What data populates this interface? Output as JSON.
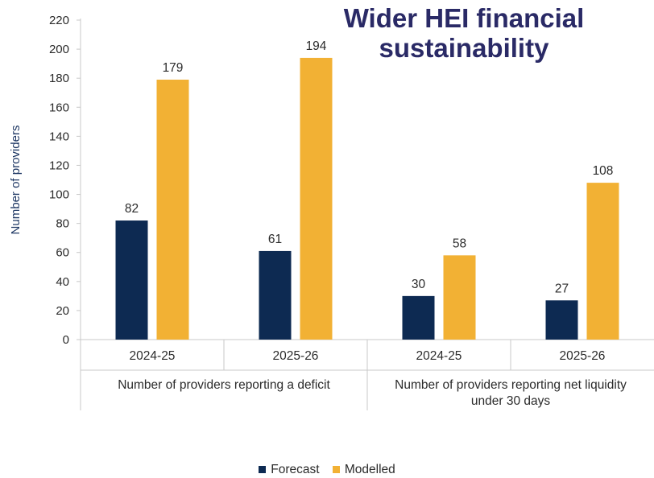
{
  "title": "Wider HEI financial sustainability",
  "colors": {
    "forecast": "#0d2a52",
    "modelled": "#f2b134",
    "axis": "#c8c8c8"
  },
  "chart_data": {
    "type": "bar",
    "title": "Wider HEI financial sustainability",
    "ylabel": "Number of providers",
    "xlabel": "",
    "ylim": [
      0,
      220
    ],
    "ytick_step": 20,
    "grid": false,
    "legend_position": "bottom",
    "groups": [
      {
        "label": "Number of providers reporting a deficit",
        "categories": [
          "2024-25",
          "2025-26"
        ]
      },
      {
        "label": "Number of providers reporting net liquidity under 30 days",
        "categories": [
          "2024-25",
          "2025-26"
        ]
      }
    ],
    "categories": [
      "2024-25",
      "2025-26",
      "2024-25",
      "2025-26"
    ],
    "series": [
      {
        "name": "Forecast",
        "values": [
          82,
          61,
          30,
          27
        ]
      },
      {
        "name": "Modelled",
        "values": [
          179,
          194,
          58,
          108
        ]
      }
    ]
  }
}
